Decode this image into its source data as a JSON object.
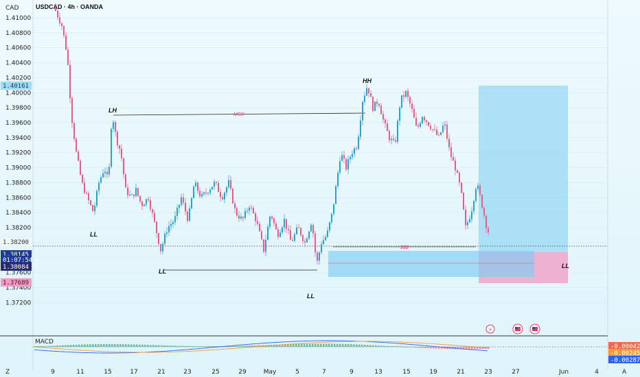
{
  "header": {
    "title": "USDCAD · 4h · OANDA",
    "currency": "CAD"
  },
  "macd_label": "MACD",
  "colors": {
    "up": "#26a2d8",
    "down": "#ec5a8a",
    "zone_blue": "#7ccdf3",
    "zone_pink": "#f39ac3",
    "accent": "#2962ff"
  },
  "annotations": {
    "lh": "LH",
    "hh": "HH",
    "ll": "LL",
    "mss": "MSS",
    "sss": "$$$"
  },
  "price_tags": {
    "target": "1.40161",
    "current": "1.38145",
    "countdown": "01:07:54",
    "stop_ref": "1.38084",
    "stop": "1.37689",
    "partial": "1.38200"
  },
  "macd_tags": {
    "a": "-0.00042",
    "b": "-0.00245",
    "c": "-0.00287"
  },
  "icons": [
    "flash-icon",
    "us-flag-icon",
    "us-flag-icon"
  ],
  "footer": {
    "left": "Z",
    "right": "A"
  },
  "chart_data": {
    "type": "candlestick",
    "title": "USDCAD · 4h · OANDA",
    "ylabel": "CAD",
    "ylim": [
      1.37,
      1.412
    ],
    "y_ticks": [
      "1.41000",
      "1.40800",
      "1.40600",
      "1.40400",
      "1.40200",
      "1.40000",
      "1.39800",
      "1.39600",
      "1.39400",
      "1.39200",
      "1.39000",
      "1.38800",
      "1.38600",
      "1.38400",
      "1.38200",
      "1.38000",
      "1.37800",
      "1.37600",
      "1.37400",
      "1.37200"
    ],
    "x_ticks": [
      "9",
      "11",
      "15",
      "17",
      "21",
      "23",
      "25",
      "29",
      "May",
      "5",
      "7",
      "9",
      "13",
      "15",
      "19",
      "21",
      "23",
      "27",
      "Jun",
      "4"
    ],
    "swing_points": [
      {
        "label": "LH",
        "price": 1.3977
      },
      {
        "label": "LL",
        "price": 1.3837
      },
      {
        "label": "LL",
        "price": 1.3788
      },
      {
        "label": "LL",
        "price": 1.3766
      },
      {
        "label": "HH",
        "price": 1.4016
      }
    ],
    "levels": {
      "mss": 1.3982,
      "sss": 1.3816,
      "entry": 1.3812,
      "target": 1.40161,
      "stop": 1.37689
    }
  }
}
